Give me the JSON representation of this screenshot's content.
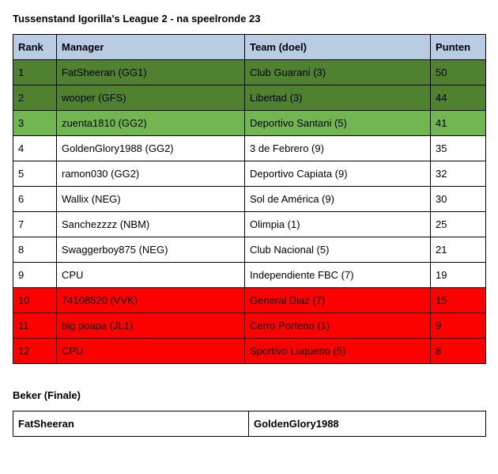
{
  "title": "Tussenstand Igorilla's League 2 - na speelronde 23",
  "columns": {
    "rank": "Rank",
    "manager": "Manager",
    "team": "Team (doel)",
    "points": "Punten"
  },
  "colors": {
    "header_bg": "#b8cce4",
    "green_dark": "#4f8131",
    "green_light": "#71b651",
    "white": "#ffffff",
    "red": "#ff0000",
    "border": "#000000",
    "text": "#000000"
  },
  "rows": [
    {
      "rank": "1",
      "manager": "FatSheeran (GG1)",
      "team": "Club Guarani (3)",
      "points": "50",
      "row_class": "row-green-dark"
    },
    {
      "rank": "2",
      "manager": "wooper (GFS)",
      "team": "Libertad (3)",
      "points": "44",
      "row_class": "row-green-dark"
    },
    {
      "rank": "3",
      "manager": "zuenta1810 (GG2)",
      "team": "Deportivo Santani (5)",
      "points": "41",
      "row_class": "row-green-light"
    },
    {
      "rank": "4",
      "manager": "GoldenGlory1988 (GG2)",
      "team": "3 de Febrero (9)",
      "points": "35",
      "row_class": "row-white"
    },
    {
      "rank": "5",
      "manager": "ramon030 (GG2)",
      "team": "Deportivo Capiata (9)",
      "points": "32",
      "row_class": "row-white"
    },
    {
      "rank": "6",
      "manager": "Wallix (NEG)",
      "team": "Sol de América (9)",
      "points": "30",
      "row_class": "row-white"
    },
    {
      "rank": "7",
      "manager": "Sanchezzzz (NBM)",
      "team": "Olimpia (1)",
      "points": "25",
      "row_class": "row-white"
    },
    {
      "rank": "8",
      "manager": "Swaggerboy875 (NEG)",
      "team": "Club Nacional (5)",
      "points": "21",
      "row_class": "row-white"
    },
    {
      "rank": "9",
      "manager": "CPU",
      "team": "Independiente FBC (7)",
      "points": "19",
      "row_class": "row-white"
    },
    {
      "rank": "10",
      "manager": "74108520 (VVK)",
      "team": "General Diaz (7)",
      "points": "15",
      "row_class": "row-red"
    },
    {
      "rank": "11",
      "manager": "big poapa (JL1)",
      "team": "Cerro Porteno (1)",
      "points": "9",
      "row_class": "row-red"
    },
    {
      "rank": "12",
      "manager": "CPU",
      "team": "Sportivo Luqueno (5)",
      "points": "8",
      "row_class": "row-red"
    }
  ],
  "cup": {
    "title": "Beker (Finale)",
    "left": "FatSheeran",
    "right": "GoldenGlory1988"
  }
}
